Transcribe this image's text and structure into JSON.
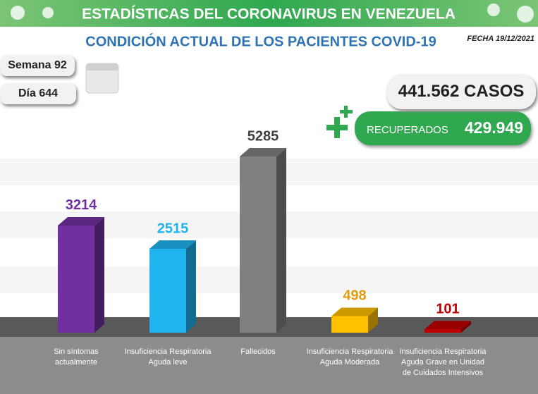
{
  "header": {
    "title": "ESTADÍSTICAS DEL CORONAVIRUS EN VENEZUELA",
    "subtitle": "CONDICIÓN ACTUAL DE LOS PACIENTES COVID-19",
    "date": "FECHA 19/12/2021",
    "week": "Semana 92",
    "day": "Día 644",
    "cases": "441.562 CASOS",
    "recovered_label": "RECUPERADOS",
    "recovered_value": "429.949"
  },
  "chart_data": {
    "type": "bar",
    "categories": [
      "Sin síntomas actualmente",
      "Insuficiencia Respiratoria Aguda leve",
      "Fallecidos",
      "Insuficiencia Respiratoria Aguda Moderada",
      "Insuficiencia Respiratoria Aguda Grave en Unidad de Cuidados Intensivos"
    ],
    "values": [
      3214,
      2515,
      5285,
      498,
      101
    ],
    "colors": [
      "#7030a0",
      "#1fb4f0",
      "#7f7f7f",
      "#ffc000",
      "#c00000"
    ],
    "label_colors": [
      "#7030a0",
      "#1fb4f0",
      "#404040",
      "#e49b0f",
      "#c00000"
    ]
  }
}
